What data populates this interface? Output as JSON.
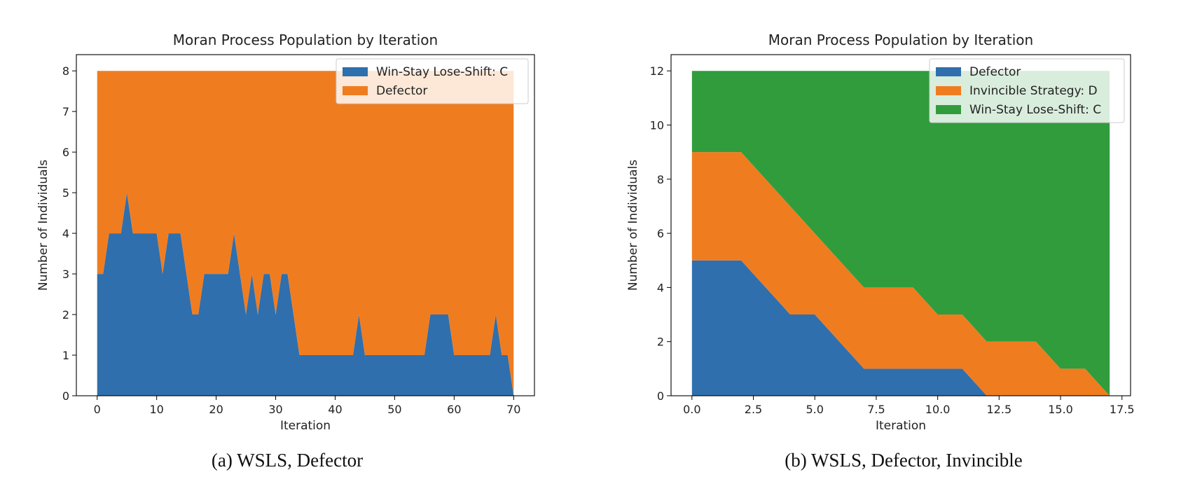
{
  "colors": {
    "blue": "#2f6fad",
    "orange": "#f07c20",
    "green": "#319c3c"
  },
  "chart_data": [
    {
      "type": "area",
      "stacked": true,
      "title": "Moran Process Population by Iteration",
      "xlabel": "Iteration",
      "ylabel": "Number of Individuals",
      "xlim": [
        -3.5,
        73.5
      ],
      "ylim": [
        0,
        8.4
      ],
      "xticks": [
        0,
        10,
        20,
        30,
        40,
        50,
        60,
        70
      ],
      "xtick_labels": [
        "0",
        "10",
        "20",
        "30",
        "40",
        "50",
        "60",
        "70"
      ],
      "yticks": [
        0,
        1,
        2,
        3,
        4,
        5,
        6,
        7,
        8
      ],
      "ytick_labels": [
        "0",
        "1",
        "2",
        "3",
        "4",
        "5",
        "6",
        "7",
        "8"
      ],
      "legend_position": "top-right",
      "x": [
        0,
        1,
        2,
        3,
        4,
        5,
        6,
        7,
        8,
        9,
        10,
        11,
        12,
        13,
        14,
        15,
        16,
        17,
        18,
        19,
        20,
        21,
        22,
        23,
        24,
        25,
        26,
        27,
        28,
        29,
        30,
        31,
        32,
        33,
        34,
        35,
        36,
        37,
        38,
        39,
        40,
        41,
        42,
        43,
        44,
        45,
        46,
        47,
        48,
        49,
        50,
        51,
        52,
        53,
        54,
        55,
        56,
        57,
        58,
        59,
        60,
        61,
        62,
        63,
        64,
        65,
        66,
        67,
        68,
        69,
        70
      ],
      "series": [
        {
          "name": "Win-Stay Lose-Shift: C",
          "color": "#2f6fad",
          "values": [
            3,
            3,
            4,
            4,
            4,
            5,
            4,
            4,
            4,
            4,
            4,
            3,
            4,
            4,
            4,
            3,
            2,
            2,
            3,
            3,
            3,
            3,
            3,
            4,
            3,
            2,
            3,
            2,
            3,
            3,
            2,
            3,
            3,
            2,
            1,
            1,
            1,
            1,
            1,
            1,
            1,
            1,
            1,
            1,
            2,
            1,
            1,
            1,
            1,
            1,
            1,
            1,
            1,
            1,
            1,
            1,
            2,
            2,
            2,
            2,
            1,
            1,
            1,
            1,
            1,
            1,
            1,
            2,
            1,
            1,
            0
          ]
        },
        {
          "name": "Defector",
          "color": "#f07c20",
          "values": [
            5,
            5,
            4,
            4,
            4,
            3,
            4,
            4,
            4,
            4,
            4,
            5,
            4,
            4,
            4,
            5,
            6,
            6,
            5,
            5,
            5,
            5,
            5,
            4,
            5,
            6,
            5,
            6,
            5,
            5,
            6,
            5,
            5,
            6,
            7,
            7,
            7,
            7,
            7,
            7,
            7,
            7,
            7,
            7,
            6,
            7,
            7,
            7,
            7,
            7,
            7,
            7,
            7,
            7,
            7,
            7,
            6,
            6,
            6,
            6,
            7,
            7,
            7,
            7,
            7,
            7,
            7,
            6,
            7,
            7,
            8
          ]
        }
      ],
      "caption": "(a) WSLS, Defector"
    },
    {
      "type": "area",
      "stacked": true,
      "title": "Moran Process Population by Iteration",
      "xlabel": "Iteration",
      "ylabel": "Number of Individuals",
      "xlim": [
        -0.85,
        17.85
      ],
      "ylim": [
        0,
        12.6
      ],
      "xticks": [
        0,
        2.5,
        5,
        7.5,
        10,
        12.5,
        15,
        17.5
      ],
      "xtick_labels": [
        "0.0",
        "2.5",
        "5.0",
        "7.5",
        "10.0",
        "12.5",
        "15.0",
        "17.5"
      ],
      "yticks": [
        0,
        2,
        4,
        6,
        8,
        10,
        12
      ],
      "ytick_labels": [
        "0",
        "2",
        "4",
        "6",
        "8",
        "10",
        "12"
      ],
      "legend_position": "top-right",
      "x": [
        0,
        1,
        2,
        3,
        4,
        5,
        6,
        7,
        8,
        9,
        10,
        11,
        12,
        13,
        14,
        15,
        16,
        17
      ],
      "series": [
        {
          "name": "Defector",
          "color": "#2f6fad",
          "values": [
            5,
            5,
            5,
            4,
            3,
            3,
            2,
            1,
            1,
            1,
            1,
            1,
            0,
            0,
            0,
            0,
            0,
            0
          ]
        },
        {
          "name": "Invincible Strategy: D",
          "color": "#f07c20",
          "values": [
            4,
            4,
            4,
            4,
            4,
            3,
            3,
            3,
            3,
            3,
            2,
            2,
            2,
            2,
            2,
            1,
            1,
            0
          ]
        },
        {
          "name": "Win-Stay Lose-Shift: C",
          "color": "#319c3c",
          "values": [
            3,
            3,
            3,
            4,
            5,
            6,
            7,
            8,
            8,
            8,
            9,
            9,
            10,
            10,
            10,
            11,
            11,
            12
          ]
        }
      ],
      "caption": "(b) WSLS, Defector, Invincible"
    }
  ]
}
